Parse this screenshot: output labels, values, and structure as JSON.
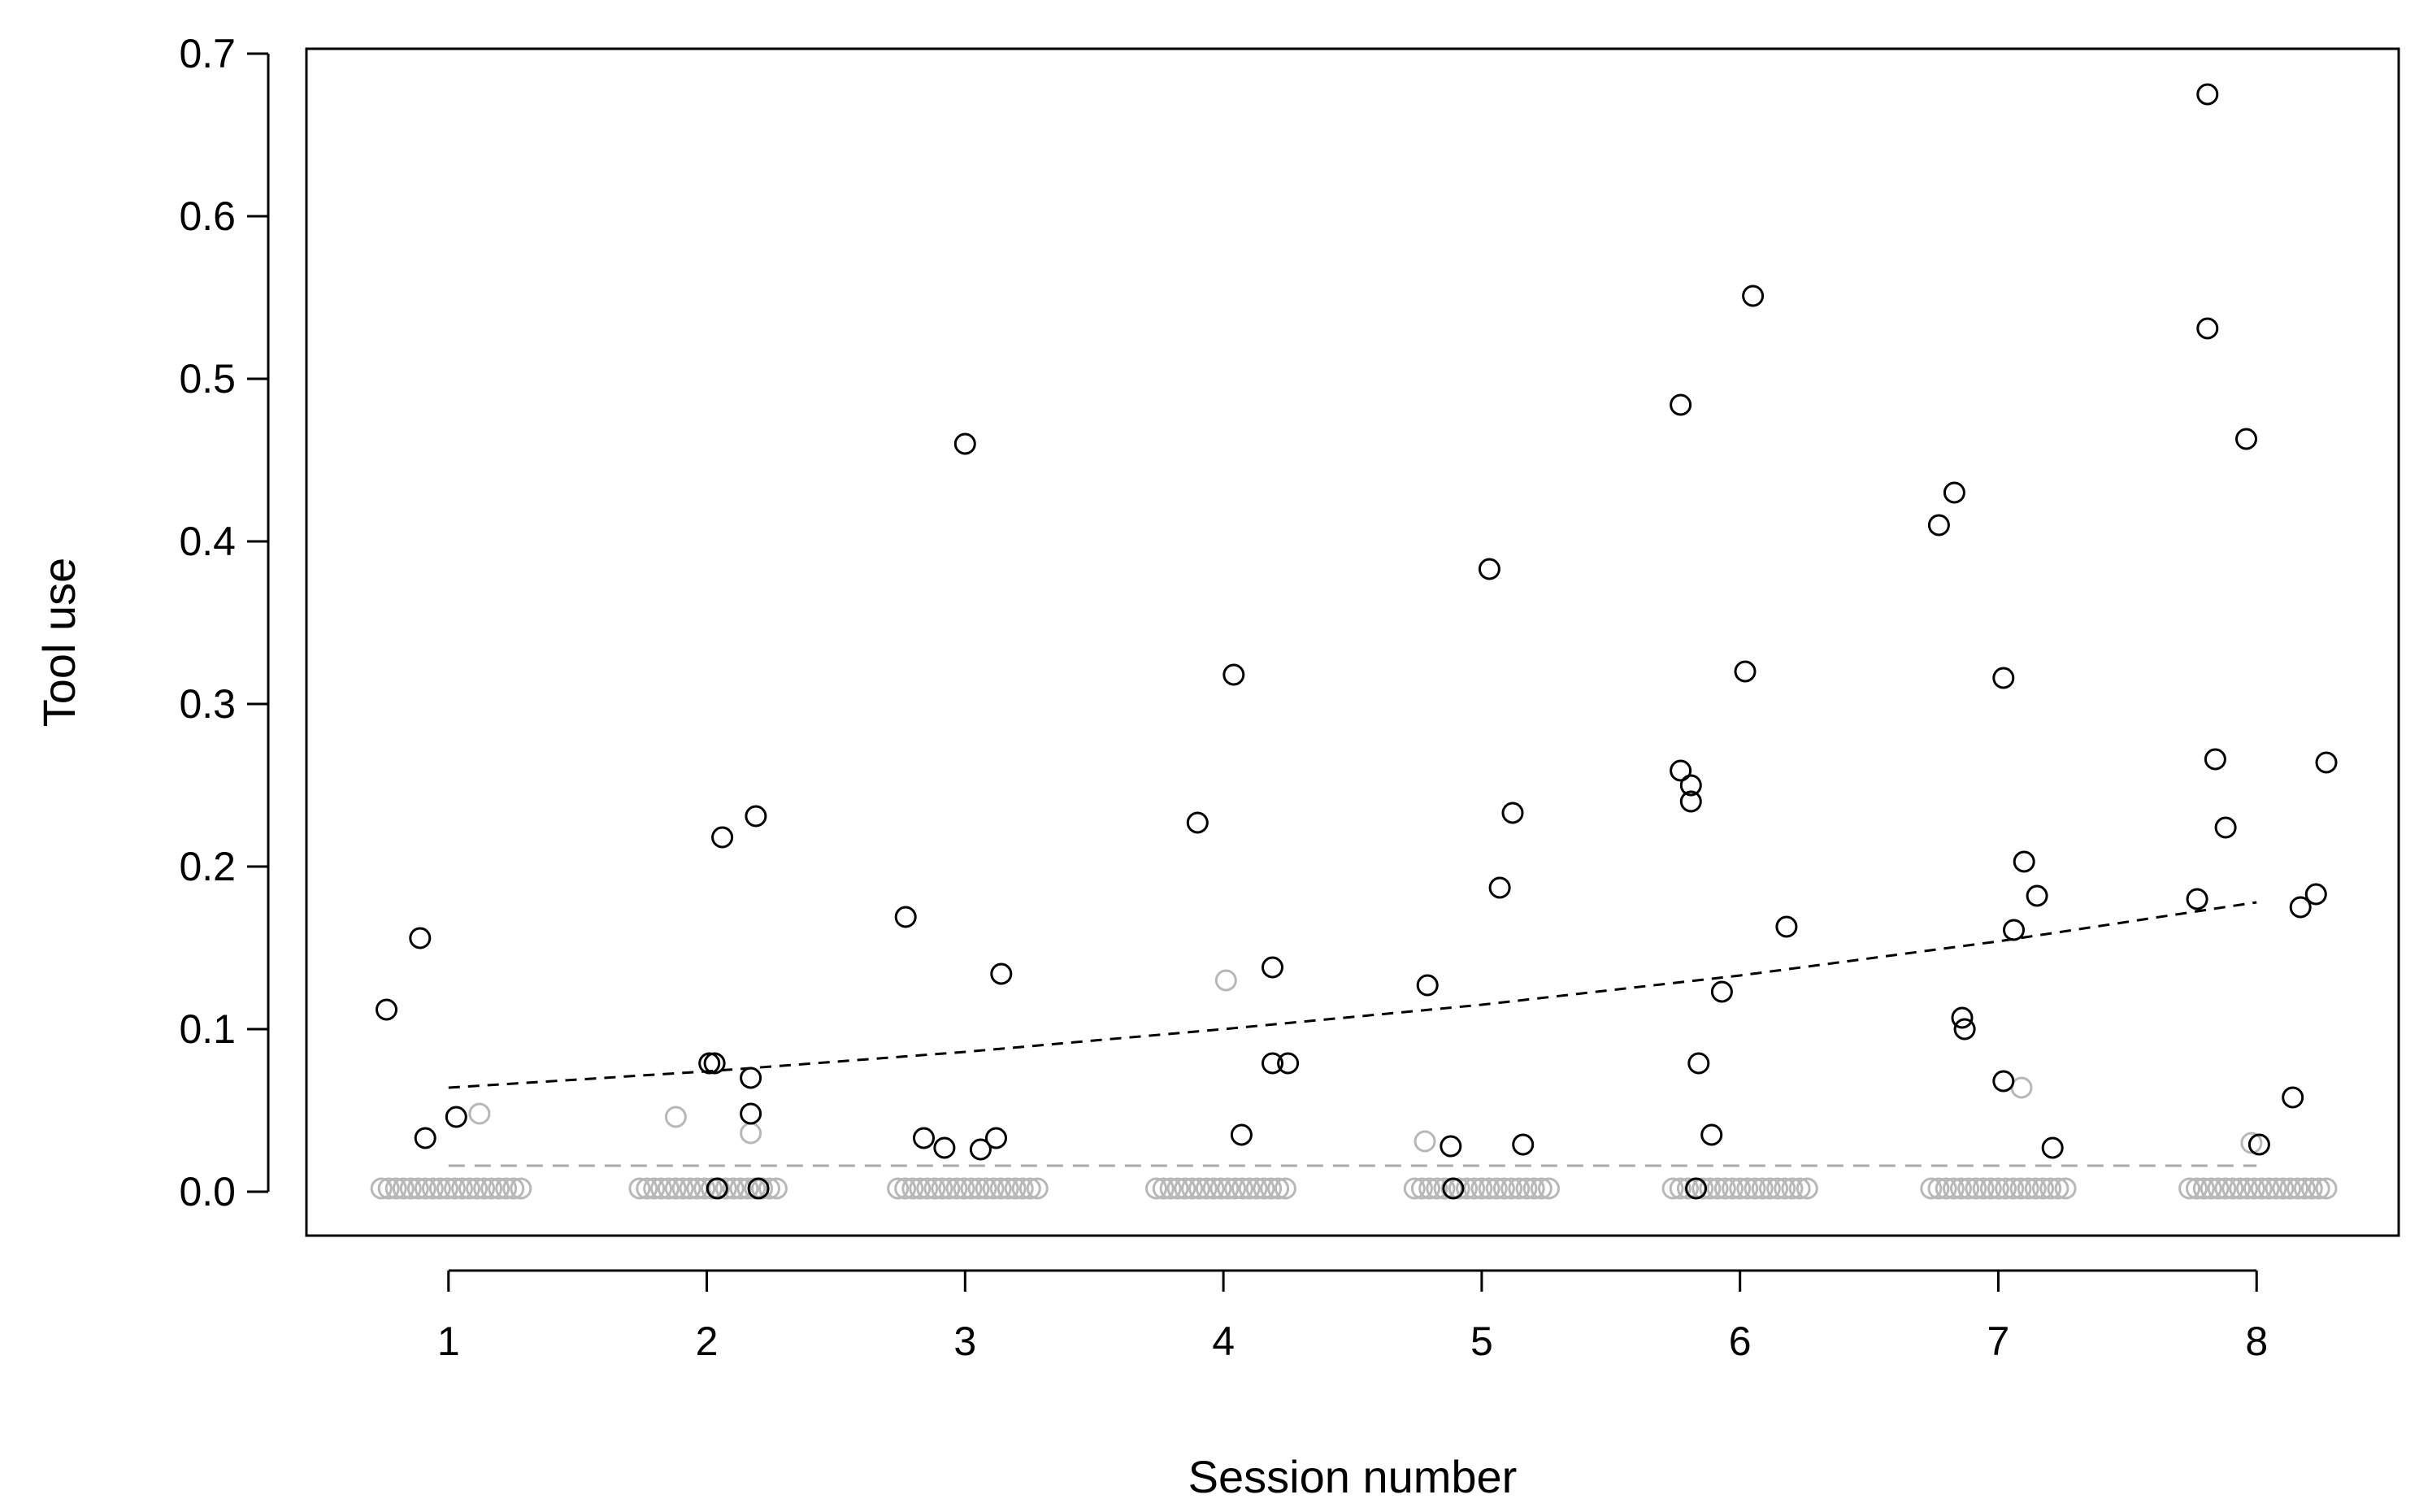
{
  "chart_data": {
    "type": "scatter",
    "title": "",
    "xlabel": "Session number",
    "ylabel": "Tool use",
    "x_ticks": [
      "1",
      "2",
      "3",
      "4",
      "5",
      "6",
      "7",
      "8"
    ],
    "y_ticks": [
      "0.0",
      "0.1",
      "0.2",
      "0.3",
      "0.4",
      "0.5",
      "0.6",
      "0.7"
    ],
    "xlim": [
      0.45,
      8.55
    ],
    "ylim": [
      -0.027,
      0.703
    ],
    "grid": false,
    "legend": "none",
    "colors": {
      "black_points": "#000000",
      "gray_points": "#b8b8b8",
      "black_trend": "#000000",
      "gray_trend": "#aaaaaa"
    },
    "series": [
      {
        "color": "black",
        "points": [
          [
            0.76,
            0.112
          ],
          [
            0.89,
            0.156
          ],
          [
            0.91,
            0.033
          ],
          [
            1.03,
            0.046
          ],
          [
            2.01,
            0.079
          ],
          [
            2.03,
            0.079
          ],
          [
            2.04,
            0.002
          ],
          [
            2.06,
            0.218
          ],
          [
            2.17,
            0.07
          ],
          [
            2.17,
            0.048
          ],
          [
            2.19,
            0.231
          ],
          [
            2.2,
            0.002
          ],
          [
            2.77,
            0.169
          ],
          [
            2.84,
            0.033
          ],
          [
            2.92,
            0.027
          ],
          [
            3.0,
            0.46
          ],
          [
            3.06,
            0.026
          ],
          [
            3.12,
            0.033
          ],
          [
            3.14,
            0.134
          ],
          [
            3.9,
            0.227
          ],
          [
            4.04,
            0.318
          ],
          [
            4.07,
            0.035
          ],
          [
            4.19,
            0.138
          ],
          [
            4.19,
            0.079
          ],
          [
            4.25,
            0.079
          ],
          [
            4.79,
            0.127
          ],
          [
            4.88,
            0.028
          ],
          [
            4.89,
            0.002
          ],
          [
            5.03,
            0.383
          ],
          [
            5.07,
            0.187
          ],
          [
            5.12,
            0.233
          ],
          [
            5.16,
            0.029
          ],
          [
            5.77,
            0.484
          ],
          [
            5.77,
            0.259
          ],
          [
            5.81,
            0.25
          ],
          [
            5.81,
            0.24
          ],
          [
            5.83,
            0.002
          ],
          [
            5.84,
            0.079
          ],
          [
            5.89,
            0.035
          ],
          [
            5.93,
            0.123
          ],
          [
            6.02,
            0.32
          ],
          [
            6.05,
            0.551
          ],
          [
            6.18,
            0.163
          ],
          [
            6.77,
            0.41
          ],
          [
            6.83,
            0.43
          ],
          [
            6.86,
            0.107
          ],
          [
            6.87,
            0.1
          ],
          [
            7.02,
            0.316
          ],
          [
            7.02,
            0.068
          ],
          [
            7.06,
            0.161
          ],
          [
            7.1,
            0.203
          ],
          [
            7.15,
            0.182
          ],
          [
            7.21,
            0.027
          ],
          [
            7.77,
            0.18
          ],
          [
            7.81,
            0.675
          ],
          [
            7.81,
            0.531
          ],
          [
            7.84,
            0.266
          ],
          [
            7.88,
            0.224
          ],
          [
            7.96,
            0.463
          ],
          [
            8.01,
            0.029
          ],
          [
            8.14,
            0.058
          ],
          [
            8.17,
            0.175
          ],
          [
            8.23,
            0.183
          ],
          [
            8.27,
            0.264
          ]
        ]
      },
      {
        "color": "gray",
        "points": [
          [
            1.12,
            0.048
          ],
          [
            1.88,
            0.046
          ],
          [
            2.17,
            0.036
          ],
          [
            4.01,
            0.13
          ],
          [
            4.78,
            0.031
          ],
          [
            7.09,
            0.064
          ],
          [
            7.98,
            0.03
          ]
        ],
        "zero_runs": [
          [
            0.74,
            1.28
          ],
          [
            1.74,
            2.27
          ],
          [
            2.74,
            3.28
          ],
          [
            3.74,
            4.24
          ],
          [
            4.74,
            5.26
          ],
          [
            5.74,
            6.26
          ],
          [
            6.74,
            7.26
          ],
          [
            7.74,
            8.27
          ]
        ]
      }
    ],
    "trend_lines": [
      {
        "color": "black",
        "style": "dashed",
        "x": [
          1,
          2,
          3,
          4,
          5,
          6,
          7,
          8
        ],
        "y": [
          0.064,
          0.074,
          0.086,
          0.1,
          0.115,
          0.133,
          0.154,
          0.178
        ]
      },
      {
        "color": "gray",
        "style": "dashed",
        "x": [
          1,
          8
        ],
        "y": [
          0.016,
          0.016
        ]
      }
    ]
  }
}
